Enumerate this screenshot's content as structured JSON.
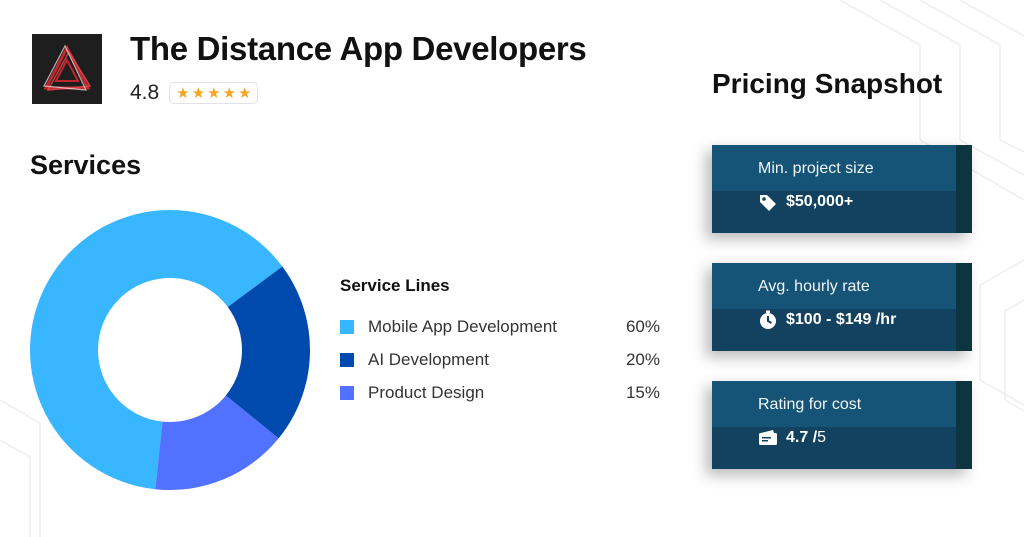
{
  "company": {
    "name": "The Distance App Developers",
    "rating": "4.8",
    "stars": [
      "★",
      "★",
      "★",
      "★",
      "★"
    ]
  },
  "services": {
    "title": "Services",
    "legend_title": "Service Lines"
  },
  "chart_data": {
    "type": "pie",
    "variant": "donut",
    "categories": [
      "Mobile App Development",
      "AI Development",
      "Product Design"
    ],
    "values": [
      60,
      20,
      15
    ],
    "labels": [
      "60%",
      "20%",
      "15%"
    ],
    "colors": [
      "#38b6ff",
      "#004aad",
      "#5271ff"
    ],
    "legend": "right"
  },
  "pricing": {
    "title": "Pricing Snapshot",
    "cards": [
      {
        "label": "Min. project size",
        "value": "$50,000+",
        "suffix": "",
        "icon": "price-tag-icon"
      },
      {
        "label": "Avg. hourly rate",
        "value": "$100 - $149 /hr",
        "suffix": "",
        "icon": "clock-icon"
      },
      {
        "label": "Rating for cost",
        "value": "4.7 /",
        "suffix": "5",
        "icon": "wallet-icon"
      }
    ]
  },
  "colors": {
    "card_top": "#155476",
    "card_bottom": "#12425f",
    "star": "#f5a623"
  }
}
